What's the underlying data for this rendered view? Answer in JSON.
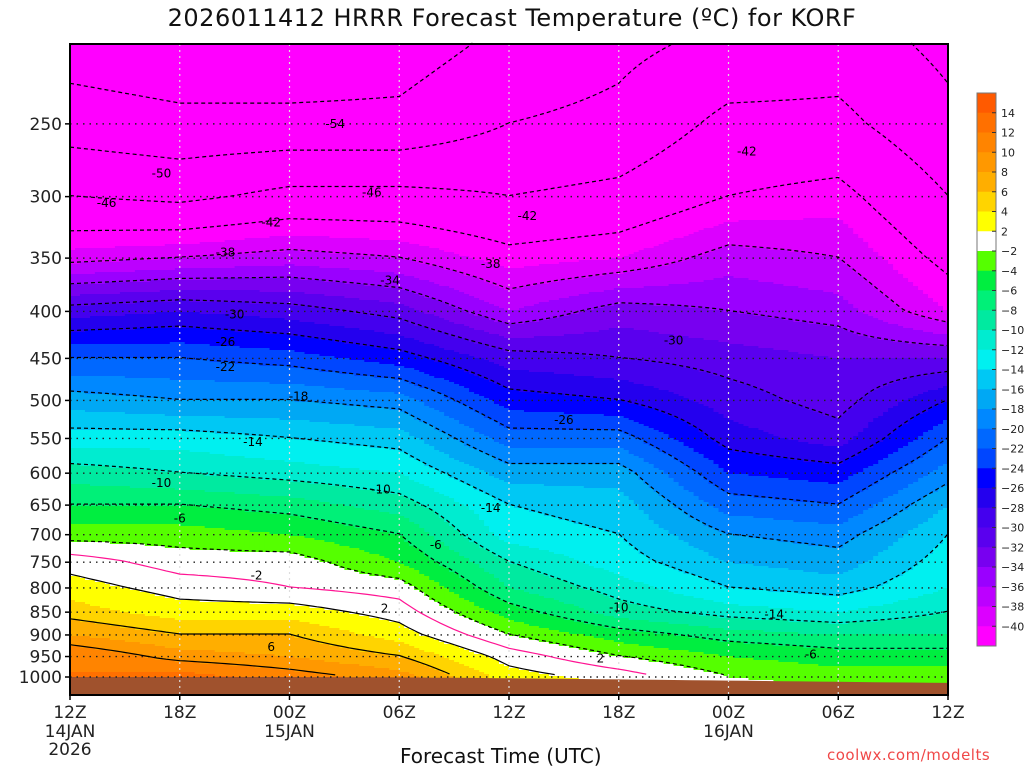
{
  "chart_data": {
    "type": "heatmap",
    "title": "2026011412 HRRR Forecast Temperature (ºC) for KORF",
    "xlabel": "Forecast Time (UTC)",
    "ylabel": "",
    "credit": "coolwx.com/modelts",
    "xlim_hours": [
      0,
      48
    ],
    "ylim_hpa": [
      1046,
      205
    ],
    "x_ticks": [
      {
        "hour": 0,
        "label": "12Z",
        "sub": "14JAN",
        "sub2": "2026"
      },
      {
        "hour": 6,
        "label": "18Z",
        "sub": "",
        "sub2": ""
      },
      {
        "hour": 12,
        "label": "00Z",
        "sub": "15JAN",
        "sub2": ""
      },
      {
        "hour": 18,
        "label": "06Z",
        "sub": "",
        "sub2": ""
      },
      {
        "hour": 24,
        "label": "12Z",
        "sub": "",
        "sub2": ""
      },
      {
        "hour": 30,
        "label": "18Z",
        "sub": "",
        "sub2": ""
      },
      {
        "hour": 36,
        "label": "00Z",
        "sub": "16JAN",
        "sub2": ""
      },
      {
        "hour": 42,
        "label": "06Z",
        "sub": "",
        "sub2": ""
      },
      {
        "hour": 48,
        "label": "12Z",
        "sub": "",
        "sub2": ""
      }
    ],
    "y_ticks": [
      "250",
      "300",
      "350",
      "400",
      "450",
      "500",
      "550",
      "600",
      "650",
      "700",
      "750",
      "800",
      "850",
      "900",
      "950",
      "1000"
    ],
    "grid": true,
    "pressure_levels": [
      1000,
      950,
      900,
      850,
      800,
      750,
      700,
      650,
      600,
      550,
      500,
      450,
      400,
      350,
      300,
      250,
      205
    ],
    "profile_hours": [
      0,
      6,
      12,
      18,
      24,
      30,
      36,
      42,
      48
    ],
    "temperature_profiles": [
      [
        12,
        12,
        8,
        5,
        3,
        1,
        -3,
        -6,
        -9,
        -13,
        -17,
        -22,
        -29,
        -39,
        -46,
        -52,
        -56
      ],
      [
        13,
        9,
        6,
        3,
        1,
        -1,
        -3,
        -6,
        -10,
        -13,
        -18,
        -22,
        -28,
        -38,
        -47,
        -53,
        -57
      ],
      [
        11,
        8,
        6,
        3,
        0,
        -1,
        -4,
        -7,
        -11,
        -14,
        -18,
        -23,
        -29,
        -37,
        -45,
        -53,
        -57
      ],
      [
        9,
        6,
        3,
        1,
        -1,
        -4,
        -6,
        -9,
        -12,
        -15,
        -19,
        -25,
        -31,
        -38,
        -45,
        -53,
        -56
      ],
      [
        3,
        1,
        -2,
        -5,
        -8,
        -10,
        -13,
        -14,
        -17,
        -21,
        -25,
        -29,
        -36,
        -41,
        -46,
        -50,
        -53
      ],
      [
        1,
        -2,
        -5,
        -9,
        -11,
        -13,
        -14,
        -15,
        -17,
        -21,
        -26,
        -30,
        -33,
        -40,
        -45,
        -49,
        -51
      ],
      [
        -2,
        -4,
        -7,
        -11,
        -14,
        -16,
        -18,
        -21,
        -24,
        -27,
        -29,
        -31,
        -34,
        -37,
        -42,
        -45,
        -49
      ],
      [
        -3,
        -5,
        -8,
        -12,
        -15,
        -17,
        -19,
        -22,
        -25,
        -29,
        -31,
        -32,
        -35,
        -38,
        -41,
        -45,
        -48
      ],
      [
        -3,
        -5,
        -8,
        -10,
        -12,
        -13,
        -14,
        -16,
        -19,
        -22,
        -26,
        -32,
        -40,
        -43,
        -46,
        -49,
        -51
      ]
    ],
    "surface_pressure": [
      1000,
      1000,
      1000,
      1001,
      1003,
      1006,
      1009,
      1012,
      1015
    ],
    "contour_levels": [
      -54,
      -50,
      -46,
      -42,
      -38,
      -34,
      -30,
      -26,
      -22,
      -18,
      -14,
      -10,
      -6,
      -2,
      0,
      2,
      6,
      10
    ],
    "contour_labels": [
      {
        "text": "-54",
        "hour": 14.5,
        "p": 250
      },
      {
        "text": "-50",
        "hour": 5,
        "p": 283
      },
      {
        "text": "-46",
        "hour": 2,
        "p": 305
      },
      {
        "text": "-46",
        "hour": 16.5,
        "p": 297
      },
      {
        "text": "-42",
        "hour": 11,
        "p": 320
      },
      {
        "text": "-42",
        "hour": 25,
        "p": 315
      },
      {
        "text": "-42",
        "hour": 37,
        "p": 268
      },
      {
        "text": "-38",
        "hour": 8.5,
        "p": 345
      },
      {
        "text": "-38",
        "hour": 23,
        "p": 355
      },
      {
        "text": "-34",
        "hour": 17.5,
        "p": 370
      },
      {
        "text": "-30",
        "hour": 9,
        "p": 403
      },
      {
        "text": "-30",
        "hour": 33,
        "p": 430
      },
      {
        "text": "-26",
        "hour": 8.5,
        "p": 432
      },
      {
        "text": "-26",
        "hour": 27,
        "p": 525
      },
      {
        "text": "-22",
        "hour": 8.5,
        "p": 460
      },
      {
        "text": "-18",
        "hour": 12.5,
        "p": 495
      },
      {
        "text": "-14",
        "hour": 10,
        "p": 555
      },
      {
        "text": "-14",
        "hour": 23,
        "p": 655
      },
      {
        "text": "-14",
        "hour": 38.5,
        "p": 855
      },
      {
        "text": "-10",
        "hour": 5,
        "p": 615
      },
      {
        "text": "-10",
        "hour": 17,
        "p": 625
      },
      {
        "text": "-10",
        "hour": 30,
        "p": 840
      },
      {
        "text": "-6",
        "hour": 6,
        "p": 672
      },
      {
        "text": "-6",
        "hour": 20,
        "p": 718
      },
      {
        "text": "-6",
        "hour": 40.5,
        "p": 945
      },
      {
        "text": "-2",
        "hour": 10.2,
        "p": 775
      },
      {
        "text": "2",
        "hour": 17.2,
        "p": 842
      },
      {
        "text": "2",
        "hour": 29,
        "p": 955
      },
      {
        "text": "6",
        "hour": 11,
        "p": 928
      }
    ],
    "colorbar": {
      "labels": [
        "14",
        "12",
        "10",
        "8",
        "6",
        "4",
        "2",
        "-2",
        "-4",
        "-6",
        "-8",
        "-10",
        "-12",
        "-14",
        "-16",
        "-18",
        "-20",
        "-22",
        "-24",
        "-26",
        "-28",
        "-30",
        "-32",
        "-34",
        "-36",
        "-38",
        "-40"
      ],
      "boundaries": [
        14,
        12,
        10,
        8,
        6,
        4,
        2,
        -2,
        -4,
        -6,
        -8,
        -10,
        -12,
        -14,
        -16,
        -18,
        -20,
        -22,
        -24,
        -26,
        -28,
        -30,
        -32,
        -34,
        -36,
        -38,
        -40
      ],
      "colors": [
        "#ff5a00",
        "#ff7000",
        "#ff8400",
        "#ff9800",
        "#ffae00",
        "#ffd400",
        "#ffff00",
        "#ffffff",
        "#55ff00",
        "#00ee40",
        "#00f078",
        "#00eaa0",
        "#00ecd0",
        "#00f0f0",
        "#00c8f4",
        "#00a8f4",
        "#0088ff",
        "#0068ff",
        "#0046ff",
        "#0000ff",
        "#2400ee",
        "#4400ee",
        "#5a00ee",
        "#7800f0",
        "#9a00ff",
        "#bc00ff",
        "#dc00ff",
        "#ff00ff"
      ]
    },
    "ground_color": "#a0522d"
  }
}
